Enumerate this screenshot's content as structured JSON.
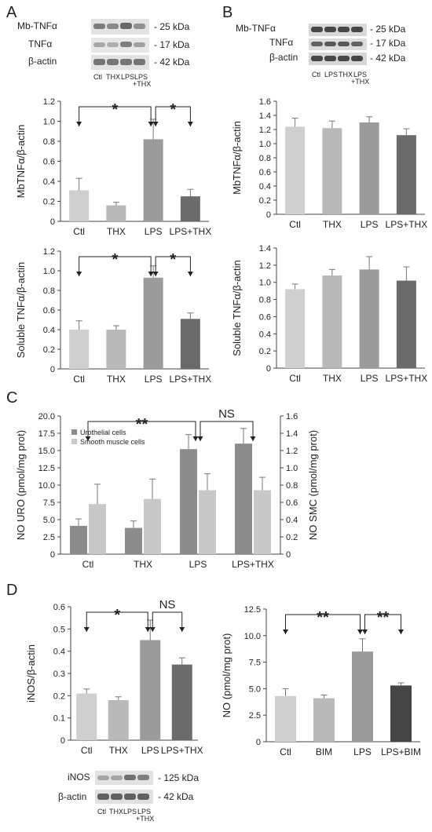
{
  "panels": [
    "A",
    "B",
    "C",
    "D"
  ],
  "chart_data": [
    {
      "id": "A_top",
      "type": "bar",
      "panel": "A",
      "categories": [
        "Ctl",
        "THX",
        "LPS",
        "LPS+THX"
      ],
      "values": [
        0.31,
        0.16,
        0.82,
        0.25
      ],
      "errors": [
        0.12,
        0.03,
        0.2,
        0.07
      ],
      "colors": [
        "#cfcfcf",
        "#b9b9b9",
        "#9b9b9b",
        "#6b6b6b"
      ],
      "ylabel": "MbTNFα/β-actin",
      "ylim": [
        0,
        1.2
      ],
      "yticks": [
        "0",
        "0.2",
        "0.4",
        "0.6",
        "0.8",
        "1.0",
        "1.2"
      ],
      "brackets": [
        {
          "from": 0,
          "to": 2,
          "label": "*"
        },
        {
          "from": 2,
          "to": 3,
          "label": "*"
        }
      ]
    },
    {
      "id": "A_bottom",
      "type": "bar",
      "panel": "A",
      "categories": [
        "Ctl",
        "THX",
        "LPS",
        "LPS+THX"
      ],
      "values": [
        0.4,
        0.4,
        0.93,
        0.51
      ],
      "errors": [
        0.09,
        0.04,
        0.12,
        0.06
      ],
      "colors": [
        "#cfcfcf",
        "#b9b9b9",
        "#9b9b9b",
        "#6b6b6b"
      ],
      "ylabel": "Soluble TNFα/β-actin",
      "ylim": [
        0,
        1.2
      ],
      "yticks": [
        "0",
        "0.2",
        "0.4",
        "0.6",
        "0.8",
        "1.0",
        "1.2"
      ],
      "brackets": [
        {
          "from": 0,
          "to": 2,
          "label": "*"
        },
        {
          "from": 2,
          "to": 3,
          "label": "*"
        }
      ]
    },
    {
      "id": "B_top",
      "type": "bar",
      "panel": "B",
      "categories": [
        "Ctl",
        "THX",
        "LPS",
        "LPS+THX"
      ],
      "values": [
        1.24,
        1.22,
        1.3,
        1.12
      ],
      "errors": [
        0.12,
        0.1,
        0.08,
        0.09
      ],
      "colors": [
        "#cfcfcf",
        "#b9b9b9",
        "#9b9b9b",
        "#6b6b6b"
      ],
      "ylabel": "MbTNFα/β-actin",
      "ylim": [
        0,
        1.6
      ],
      "yticks": [
        "0",
        "0.2",
        "0.4",
        "0.6",
        "0.8",
        "1.0",
        "1.2",
        "1.4",
        "1.6"
      ],
      "brackets": []
    },
    {
      "id": "B_bottom",
      "type": "bar",
      "panel": "B",
      "categories": [
        "Ctl",
        "THX",
        "LPS",
        "LPS+THX"
      ],
      "values": [
        0.92,
        1.08,
        1.15,
        1.02
      ],
      "errors": [
        0.06,
        0.07,
        0.15,
        0.16
      ],
      "colors": [
        "#cfcfcf",
        "#b9b9b9",
        "#9b9b9b",
        "#6b6b6b"
      ],
      "ylabel": "Soluble TNFα/β-actin",
      "ylim": [
        0,
        1.4
      ],
      "yticks": [
        "0",
        "0.2",
        "0.4",
        "0.6",
        "0.8",
        "1.0",
        "1.2",
        "1.4"
      ],
      "brackets": []
    },
    {
      "id": "C",
      "type": "bar",
      "panel": "C",
      "categories": [
        "Ctl",
        "THX",
        "LPS",
        "LPS+THX"
      ],
      "series": [
        {
          "name": "Urothelial cells",
          "axis": "left",
          "color": "#8c8c8c",
          "values": [
            4.1,
            3.8,
            15.2,
            16.0
          ],
          "errors": [
            1.0,
            1.0,
            2.1,
            2.2
          ]
        },
        {
          "name": "Smooth muscle cells",
          "axis": "right",
          "color": "#c8c8c8",
          "values": [
            0.58,
            0.64,
            0.74,
            0.74
          ],
          "errors": [
            0.23,
            0.23,
            0.19,
            0.15
          ]
        }
      ],
      "ylabel": "NO URO (pmol/mg prot)",
      "ylim": [
        0,
        20
      ],
      "yticks": [
        "0",
        "2.5",
        "5.0",
        "7.5",
        "10.0",
        "12.5",
        "15.0",
        "17.5",
        "20.0"
      ],
      "y2label": "NO SMC (pmol/mg prot)",
      "y2lim": [
        0,
        1.6
      ],
      "y2ticks": [
        "0",
        "0.2",
        "0.4",
        "0.6",
        "0.8",
        "1.0",
        "1.2",
        "1.4",
        "1.6"
      ],
      "legend": "top-left",
      "brackets": [
        {
          "from": 0,
          "to": 2,
          "label": "**"
        },
        {
          "from": 2,
          "to": 3,
          "label": "NS"
        }
      ]
    },
    {
      "id": "D_left",
      "type": "bar",
      "panel": "D",
      "categories": [
        "Ctl",
        "THX",
        "LPS",
        "LPS+THX"
      ],
      "values": [
        0.21,
        0.18,
        0.45,
        0.34
      ],
      "errors": [
        0.02,
        0.015,
        0.09,
        0.03
      ],
      "colors": [
        "#cfcfcf",
        "#b9b9b9",
        "#9b9b9b",
        "#6b6b6b"
      ],
      "ylabel": "iNOS/β-actin",
      "ylim": [
        0,
        0.6
      ],
      "yticks": [
        "0",
        "0.1",
        "0.2",
        "0.3",
        "0.4",
        "0.5",
        "0.6"
      ],
      "brackets": [
        {
          "from": 0,
          "to": 2,
          "label": "*"
        },
        {
          "from": 2,
          "to": 3,
          "label": "NS"
        }
      ]
    },
    {
      "id": "D_right",
      "type": "bar",
      "panel": "D",
      "categories": [
        "Ctl",
        "BIM",
        "LPS",
        "LPS+BIM"
      ],
      "values": [
        4.3,
        4.1,
        8.5,
        5.3
      ],
      "errors": [
        0.7,
        0.3,
        1.2,
        0.25
      ],
      "colors": [
        "#cfcfcf",
        "#b9b9b9",
        "#9b9b9b",
        "#454545"
      ],
      "ylabel": "NO (pmol/mg prot)",
      "ylim": [
        0,
        12.5
      ],
      "yticks": [
        "0",
        "2.5",
        "5.0",
        "7.5",
        "10.0",
        "12.5"
      ],
      "brackets": [
        {
          "from": 0,
          "to": 2,
          "label": "**"
        },
        {
          "from": 2,
          "to": 3,
          "label": "**"
        }
      ]
    }
  ],
  "blots": {
    "A": {
      "rows": [
        "Mb-TNFα",
        "TNFα",
        "β-actin"
      ],
      "sizes": [
        "- 25 kDa",
        "- 17 kDa",
        "- 42 kDa"
      ],
      "lanes": [
        "Ctl",
        "THX",
        "LPS",
        "LPS",
        "+THX"
      ]
    },
    "B": {
      "rows": [
        "Mb-TNFα",
        "TNFα",
        "β-actin"
      ],
      "sizes": [
        "- 25 kDa",
        "- 17 kDa",
        "- 42 kDa"
      ],
      "lanes": [
        "Ctl",
        "LPS",
        "THX",
        "LPS",
        "+THX"
      ]
    },
    "D": {
      "rows": [
        "iNOS",
        "β-actin"
      ],
      "sizes": [
        "- 125 kDa",
        "- 42 kDa"
      ],
      "lanes": [
        "Ctl",
        "THX",
        "LPS",
        "LPS",
        "+THX"
      ]
    }
  }
}
